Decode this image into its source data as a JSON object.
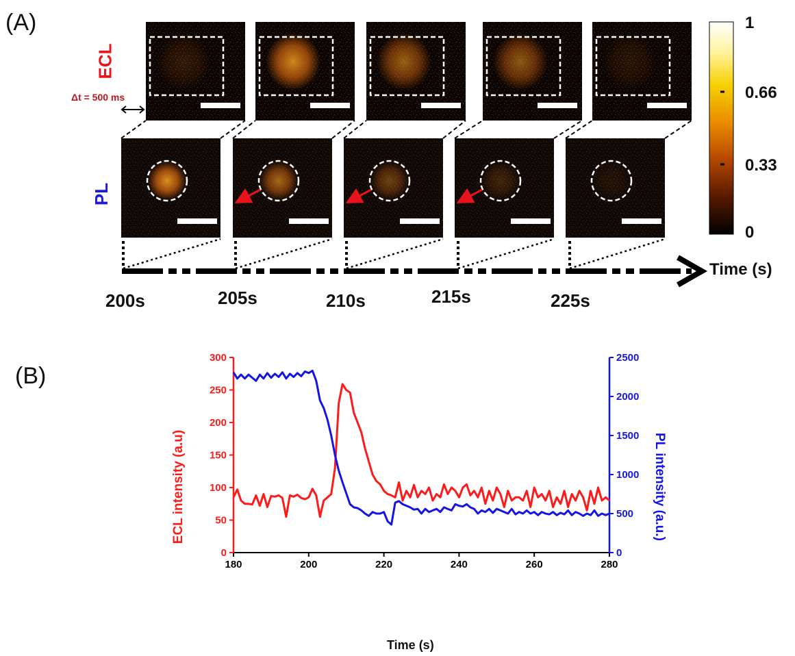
{
  "panel_a": {
    "label": "(A)",
    "ecl_row_label": "ECL",
    "pl_row_label": "PL",
    "dt_label": "Δt = 500 ms",
    "time_axis_label": "Time (s)",
    "time_points": [
      "200s",
      "205s",
      "210s",
      "215s",
      "225s"
    ],
    "ecl_brightness": [
      0.15,
      0.85,
      0.6,
      0.55,
      0.12
    ],
    "pl_brightness": [
      0.9,
      0.65,
      0.4,
      0.2,
      0.08
    ],
    "pl_arrow_shown": [
      false,
      true,
      true,
      true,
      false
    ],
    "colorbar": {
      "ticks": [
        "1",
        "0.66",
        "0.33",
        "0"
      ],
      "colormap": [
        "#000000",
        "#5a1a00",
        "#b84a00",
        "#e98a00",
        "#f7d000",
        "#fff3a0",
        "#ffffff"
      ]
    },
    "colors": {
      "ecl_label": "#e8141c",
      "pl_label": "#1a1ae0",
      "arrow": "#e8141c"
    }
  },
  "panel_b": {
    "label": "(B)"
  },
  "chart_data": {
    "type": "line",
    "xlabel": "Time (s)",
    "ylabel_left": "ECL intensity (a.u)",
    "ylabel_right": "PL intensity (a.u.)",
    "xlim": [
      180,
      280
    ],
    "ylim_left": [
      0,
      300
    ],
    "ylim_right": [
      0,
      2500
    ],
    "x_ticks": [
      "180",
      "200",
      "220",
      "240",
      "260",
      "280"
    ],
    "y_ticks_left": [
      "0",
      "50",
      "100",
      "150",
      "200",
      "250",
      "300"
    ],
    "y_ticks_right": [
      "0",
      "500",
      "1000",
      "1500",
      "2000",
      "2500"
    ],
    "series": [
      {
        "axis": "left",
        "color": "#ff1a1a",
        "x": [
          180,
          181,
          182,
          183,
          184,
          185,
          186,
          187,
          188,
          189,
          190,
          191,
          192,
          193,
          194,
          195,
          196,
          197,
          198,
          199,
          200,
          201,
          202,
          203,
          204,
          205,
          206,
          207,
          208,
          209,
          210,
          211,
          212,
          213,
          214,
          215,
          216,
          217,
          218,
          219,
          220,
          221,
          222,
          223,
          224,
          225,
          226,
          227,
          228,
          229,
          230,
          231,
          232,
          233,
          234,
          235,
          236,
          237,
          238,
          239,
          240,
          241,
          242,
          243,
          244,
          245,
          246,
          247,
          248,
          249,
          250,
          251,
          252,
          253,
          254,
          255,
          256,
          257,
          258,
          259,
          260,
          261,
          262,
          263,
          264,
          265,
          266,
          267,
          268,
          269,
          270,
          271,
          272,
          273,
          274,
          275,
          276,
          277,
          278,
          279,
          280
        ],
        "values": [
          85,
          97,
          80,
          75,
          75,
          74,
          88,
          72,
          90,
          70,
          87,
          86,
          88,
          84,
          55,
          88,
          86,
          89,
          84,
          82,
          85,
          98,
          88,
          55,
          80,
          85,
          90,
          130,
          230,
          259,
          250,
          246,
          215,
          200,
          185,
          160,
          140,
          120,
          110,
          105,
          95,
          90,
          88,
          85,
          108,
          80,
          95,
          85,
          104,
          85,
          95,
          90,
          100,
          80,
          90,
          85,
          105,
          90,
          100,
          95,
          85,
          100,
          105,
          88,
          95,
          85,
          100,
          75,
          95,
          80,
          100,
          90,
          70,
          95,
          80,
          85,
          85,
          80,
          95,
          70,
          100,
          85,
          90,
          80,
          95,
          70,
          85,
          75,
          95,
          70,
          90,
          80,
          95,
          85,
          65,
          95,
          75,
          100,
          80,
          85,
          80
        ],
        "values_note": ""
      },
      {
        "axis": "right",
        "color": "#1414e6",
        "x": [
          180,
          181,
          182,
          183,
          184,
          185,
          186,
          187,
          188,
          189,
          190,
          191,
          192,
          193,
          194,
          195,
          196,
          197,
          198,
          199,
          200,
          201,
          202,
          203,
          204,
          205,
          206,
          207,
          208,
          209,
          210,
          211,
          212,
          213,
          214,
          215,
          216,
          217,
          218,
          219,
          220,
          221,
          222,
          223,
          224,
          225,
          226,
          227,
          228,
          229,
          230,
          231,
          232,
          233,
          234,
          235,
          236,
          237,
          238,
          239,
          240,
          241,
          242,
          243,
          244,
          245,
          246,
          247,
          248,
          249,
          250,
          251,
          252,
          253,
          254,
          255,
          256,
          257,
          258,
          259,
          260,
          261,
          262,
          263,
          264,
          265,
          266,
          267,
          268,
          269,
          270,
          271,
          272,
          273,
          274,
          275,
          276,
          277,
          278,
          279,
          280
        ],
        "values": [
          2310,
          2230,
          2280,
          2230,
          2280,
          2240,
          2200,
          2280,
          2230,
          2300,
          2240,
          2290,
          2250,
          2310,
          2230,
          2290,
          2250,
          2300,
          2260,
          2320,
          2300,
          2330,
          2200,
          1950,
          1850,
          1700,
          1500,
          1250,
          1050,
          900,
          760,
          620,
          580,
          570,
          540,
          500,
          470,
          520,
          500,
          500,
          520,
          400,
          360,
          640,
          660,
          620,
          600,
          580,
          550,
          560,
          500,
          560,
          520,
          540,
          560,
          520,
          580,
          560,
          540,
          620,
          600,
          590,
          620,
          580,
          560,
          500,
          540,
          520,
          560,
          510,
          560,
          540,
          520,
          500,
          560,
          490,
          520,
          500,
          540,
          500,
          520,
          480,
          520,
          500,
          490,
          520,
          480,
          510,
          490,
          540,
          480,
          520,
          500,
          470,
          500,
          480,
          540,
          470,
          500,
          480,
          500
        ]
      }
    ]
  }
}
